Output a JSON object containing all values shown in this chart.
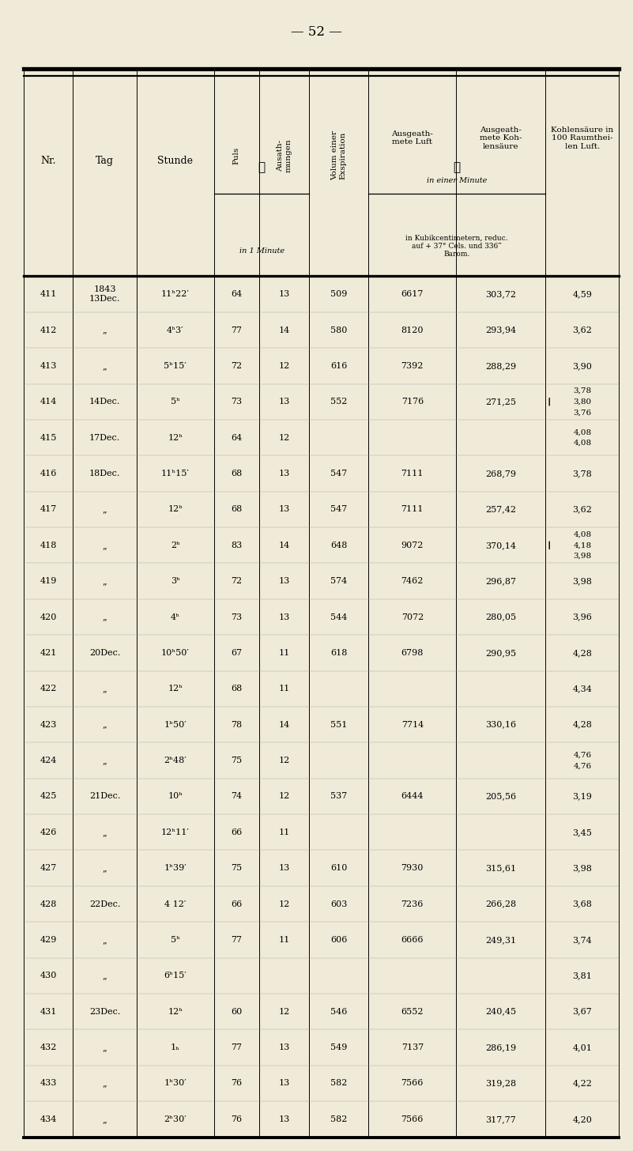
{
  "page_number": "52",
  "bg_color": "#f0ead8",
  "barom_text": "in Kubikcentimetern, reduc.\nauf + 37° Cels. und 336‴\nBarom.",
  "rows": [
    {
      "nr": "411",
      "tag": "1843\n13Dec.",
      "stunde": "11ʰ22′",
      "puls": "64",
      "ausath": "13",
      "volum": "509",
      "luft": "6617",
      "kohl": "303,72",
      "kohl100": [
        "4,59"
      ],
      "bracket": false
    },
    {
      "nr": "412",
      "tag": "„",
      "stunde": "4ʰ3′",
      "puls": "77",
      "ausath": "14",
      "volum": "580",
      "luft": "8120",
      "kohl": "293,94",
      "kohl100": [
        "3,62"
      ],
      "bracket": false
    },
    {
      "nr": "413",
      "tag": "„",
      "stunde": "5ʰ15′",
      "puls": "72",
      "ausath": "12",
      "volum": "616",
      "luft": "7392",
      "kohl": "288,29",
      "kohl100": [
        "3,90"
      ],
      "bracket": false
    },
    {
      "nr": "414",
      "tag": "14Dec.",
      "stunde": "5ʰ",
      "puls": "73",
      "ausath": "13",
      "volum": "552",
      "luft": "7176",
      "kohl": "271,25",
      "kohl100": [
        "3,78",
        "3,80",
        "3,76"
      ],
      "bracket": true
    },
    {
      "nr": "415",
      "tag": "17Dec.",
      "stunde": "12ʰ",
      "puls": "64",
      "ausath": "12",
      "volum": "",
      "luft": "",
      "kohl": "",
      "kohl100": [
        "4,08",
        "4,08"
      ],
      "bracket": false
    },
    {
      "nr": "416",
      "tag": "18Dec.",
      "stunde": "11ʰ15′",
      "puls": "68",
      "ausath": "13",
      "volum": "547",
      "luft": "7111",
      "kohl": "268,79",
      "kohl100": [
        "3,78"
      ],
      "bracket": false
    },
    {
      "nr": "417",
      "tag": "„",
      "stunde": "12ʰ",
      "puls": "68",
      "ausath": "13",
      "volum": "547",
      "luft": "7111",
      "kohl": "257,42",
      "kohl100": [
        "3,62"
      ],
      "bracket": false
    },
    {
      "nr": "418",
      "tag": "„",
      "stunde": "2ʰ",
      "puls": "83",
      "ausath": "14",
      "volum": "648",
      "luft": "9072",
      "kohl": "370,14",
      "kohl100": [
        "4,08",
        "4,18",
        "3,98"
      ],
      "bracket": true
    },
    {
      "nr": "419",
      "tag": "„",
      "stunde": "3ʰ",
      "puls": "72",
      "ausath": "13",
      "volum": "574",
      "luft": "7462",
      "kohl": "296,87",
      "kohl100": [
        "3,98"
      ],
      "bracket": false
    },
    {
      "nr": "420",
      "tag": "„",
      "stunde": "4ʰ",
      "puls": "73",
      "ausath": "13",
      "volum": "544",
      "luft": "7072",
      "kohl": "280,05",
      "kohl100": [
        "3,96"
      ],
      "bracket": false
    },
    {
      "nr": "421",
      "tag": "20Dec.",
      "stunde": "10ʰ50′",
      "puls": "67",
      "ausath": "11",
      "volum": "618",
      "luft": "6798",
      "kohl": "290,95",
      "kohl100": [
        "4,28"
      ],
      "bracket": false
    },
    {
      "nr": "422",
      "tag": "„",
      "stunde": "12ʰ",
      "puls": "68",
      "ausath": "11",
      "volum": "",
      "luft": "",
      "kohl": "",
      "kohl100": [
        "4,34"
      ],
      "bracket": false
    },
    {
      "nr": "423",
      "tag": "„",
      "stunde": "1ʰ50′",
      "puls": "78",
      "ausath": "14",
      "volum": "551",
      "luft": "7714",
      "kohl": "330,16",
      "kohl100": [
        "4,28"
      ],
      "bracket": false
    },
    {
      "nr": "424",
      "tag": "„",
      "stunde": "2ʰ48′",
      "puls": "75",
      "ausath": "12",
      "volum": "",
      "luft": "",
      "kohl": "",
      "kohl100": [
        "4,76",
        "4,76"
      ],
      "bracket": false
    },
    {
      "nr": "425",
      "tag": "21Dec.",
      "stunde": "10ʰ",
      "puls": "74",
      "ausath": "12",
      "volum": "537",
      "luft": "6444",
      "kohl": "205,56",
      "kohl100": [
        "3,19"
      ],
      "bracket": false
    },
    {
      "nr": "426",
      "tag": "„",
      "stunde": "12ʰ11′",
      "puls": "66",
      "ausath": "11",
      "volum": "",
      "luft": "",
      "kohl": "",
      "kohl100": [
        "3,45"
      ],
      "bracket": false
    },
    {
      "nr": "427",
      "tag": "„",
      "stunde": "1ʰ39′",
      "puls": "75",
      "ausath": "13",
      "volum": "610",
      "luft": "7930",
      "kohl": "315,61",
      "kohl100": [
        "3,98"
      ],
      "bracket": false
    },
    {
      "nr": "428",
      "tag": "22Dec.",
      "stunde": "4 12′",
      "puls": "66",
      "ausath": "12",
      "volum": "603",
      "luft": "7236",
      "kohl": "266,28",
      "kohl100": [
        "3,68"
      ],
      "bracket": false
    },
    {
      "nr": "429",
      "tag": "„",
      "stunde": "5ʰ",
      "puls": "77",
      "ausath": "11",
      "volum": "606",
      "luft": "6666",
      "kohl": "249,31",
      "kohl100": [
        "3,74"
      ],
      "bracket": false
    },
    {
      "nr": "430",
      "tag": "„",
      "stunde": "6ʰ15′",
      "puls": "",
      "ausath": "",
      "volum": "",
      "luft": "",
      "kohl": "",
      "kohl100": [
        "3,81"
      ],
      "bracket": false
    },
    {
      "nr": "431",
      "tag": "23Dec.",
      "stunde": "12ʰ",
      "puls": "60",
      "ausath": "12",
      "volum": "546",
      "luft": "6552",
      "kohl": "240,45",
      "kohl100": [
        "3,67"
      ],
      "bracket": false
    },
    {
      "nr": "432",
      "tag": "„",
      "stunde": "1ₕ",
      "puls": "77",
      "ausath": "13",
      "volum": "549",
      "luft": "7137",
      "kohl": "286,19",
      "kohl100": [
        "4,01"
      ],
      "bracket": false
    },
    {
      "nr": "433",
      "tag": "„",
      "stunde": "1ʰ30′",
      "puls": "76",
      "ausath": "13",
      "volum": "582",
      "luft": "7566",
      "kohl": "319,28",
      "kohl100": [
        "4,22"
      ],
      "bracket": false
    },
    {
      "nr": "434",
      "tag": "„",
      "stunde": "2ʰ30′",
      "puls": "76",
      "ausath": "13",
      "volum": "582",
      "luft": "7566",
      "kohl": "317,77",
      "kohl100": [
        "4,20"
      ],
      "bracket": false
    }
  ]
}
